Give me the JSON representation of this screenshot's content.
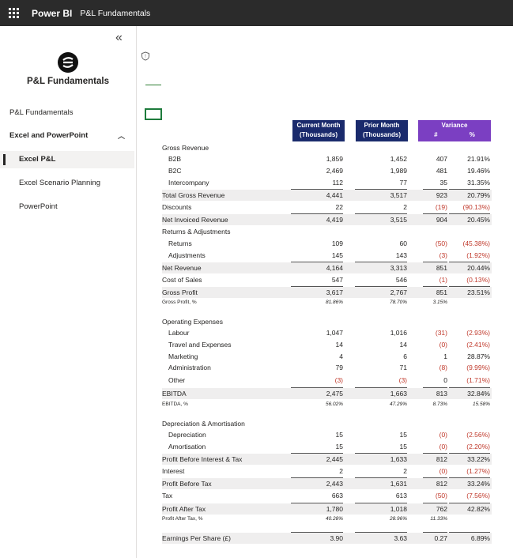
{
  "topbar": {
    "app": "Power BI",
    "report": "P&L Fundamentals"
  },
  "sidebar": {
    "title": "P&L Fundamentals",
    "items": [
      {
        "label": "P&L Fundamentals"
      },
      {
        "label": "Excel and PowerPoint"
      },
      {
        "label": "Excel P&L"
      },
      {
        "label": "Excel Scenario Planning"
      },
      {
        "label": "PowerPoint"
      }
    ]
  },
  "headers": {
    "current": "Current Month (Thousands)",
    "prior": "Prior Month (Thousands)",
    "variance": "Variance",
    "var_abs": "#",
    "var_pct": "%"
  },
  "rows": [
    {
      "label": "Gross Revenue",
      "c1": "",
      "c2": "",
      "c3": "",
      "c4": ""
    },
    {
      "label": "B2B",
      "c1": "1,859",
      "c2": "1,452",
      "c3": "407",
      "c4": "21.91%"
    },
    {
      "label": "B2C",
      "c1": "2,469",
      "c2": "1,989",
      "c3": "481",
      "c4": "19.46%"
    },
    {
      "label": "Intercompany",
      "c1": "112",
      "c2": "77",
      "c3": "35",
      "c4": "31.35%"
    },
    {
      "label": "Total Gross Revenue",
      "c1": "4,441",
      "c2": "3,517",
      "c3": "923",
      "c4": "20.79%"
    },
    {
      "label": "Discounts",
      "c1": "22",
      "c2": "2",
      "c3": "(19)",
      "c4": "(90.13%)"
    },
    {
      "label": "Net Invoiced Revenue",
      "c1": "4,419",
      "c2": "3,515",
      "c3": "904",
      "c4": "20.45%"
    },
    {
      "label": "Returns & Adjustments",
      "c1": "",
      "c2": "",
      "c3": "",
      "c4": ""
    },
    {
      "label": "Returns",
      "c1": "109",
      "c2": "60",
      "c3": "(50)",
      "c4": "(45.38%)"
    },
    {
      "label": "Adjustments",
      "c1": "145",
      "c2": "143",
      "c3": "(3)",
      "c4": "(1.92%)"
    },
    {
      "label": "Net Revenue",
      "c1": "4,164",
      "c2": "3,313",
      "c3": "851",
      "c4": "20.44%"
    },
    {
      "label": "Cost of Sales",
      "c1": "547",
      "c2": "546",
      "c3": "(1)",
      "c4": "(0.13%)"
    },
    {
      "label": "Gross Profit",
      "c1": "3,617",
      "c2": "2,767",
      "c3": "851",
      "c4": "23.51%"
    },
    {
      "label": "Gross Profit, %",
      "c1": "81.86%",
      "c2": "78.70%",
      "c3": "3.15%",
      "c4": ""
    },
    {
      "label": "Operating Expenses",
      "c1": "",
      "c2": "",
      "c3": "",
      "c4": ""
    },
    {
      "label": "Labour",
      "c1": "1,047",
      "c2": "1,016",
      "c3": "(31)",
      "c4": "(2.93%)"
    },
    {
      "label": "Travel and Expenses",
      "c1": "14",
      "c2": "14",
      "c3": "(0)",
      "c4": "(2.41%)"
    },
    {
      "label": "Marketing",
      "c1": "4",
      "c2": "6",
      "c3": "1",
      "c4": "28.87%"
    },
    {
      "label": "Administration",
      "c1": "79",
      "c2": "71",
      "c3": "(8)",
      "c4": "(9.99%)"
    },
    {
      "label": "Other",
      "c1": "(3)",
      "c2": "(3)",
      "c3": "0",
      "c4": "(1.71%)"
    },
    {
      "label": "EBITDA",
      "c1": "2,475",
      "c2": "1,663",
      "c3": "813",
      "c4": "32.84%"
    },
    {
      "label": "EBITDA, %",
      "c1": "56.02%",
      "c2": "47.29%",
      "c3": "8.73%",
      "c4": "15.58%"
    },
    {
      "label": "Depreciation & Amortisation",
      "c1": "",
      "c2": "",
      "c3": "",
      "c4": ""
    },
    {
      "label": "Depreciation",
      "c1": "15",
      "c2": "15",
      "c3": "(0)",
      "c4": "(2.56%)"
    },
    {
      "label": "Amortisation",
      "c1": "15",
      "c2": "15",
      "c3": "(0)",
      "c4": "(2.20%)"
    },
    {
      "label": "Profit Before Interest & Tax",
      "c1": "2,445",
      "c2": "1,633",
      "c3": "812",
      "c4": "33.22%"
    },
    {
      "label": "Interest",
      "c1": "2",
      "c2": "2",
      "c3": "(0)",
      "c4": "(1.27%)"
    },
    {
      "label": "Profit Before Tax",
      "c1": "2,443",
      "c2": "1,631",
      "c3": "812",
      "c4": "33.24%"
    },
    {
      "label": "Tax",
      "c1": "663",
      "c2": "613",
      "c3": "(50)",
      "c4": "(7.56%)"
    },
    {
      "label": "Profit After Tax",
      "c1": "1,780",
      "c2": "1,018",
      "c3": "762",
      "c4": "42.82%"
    },
    {
      "label": "Profit After Tax, %",
      "c1": "40.28%",
      "c2": "28.96%",
      "c3": "11.33%",
      "c4": ""
    },
    {
      "label": "Earnings Per Share (£)",
      "c1": "3.90",
      "c2": "3.63",
      "c3": "0.27",
      "c4": "6.89%"
    }
  ]
}
